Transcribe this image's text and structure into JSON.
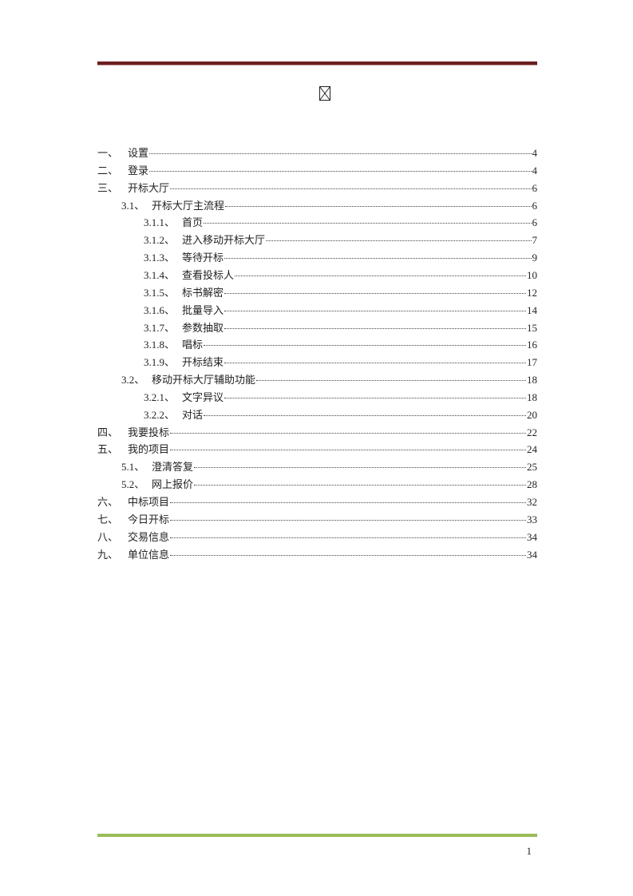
{
  "header": {
    "rule_color": "#6b1f20",
    "logo_icon": "broken-image-icon"
  },
  "toc": [
    {
      "level": 1,
      "num": "一、",
      "title": "设置",
      "page": "4"
    },
    {
      "level": 1,
      "num": "二、",
      "title": "登录",
      "page": "4"
    },
    {
      "level": 1,
      "num": "三、",
      "title": "开标大厅",
      "page": "6"
    },
    {
      "level": 2,
      "num": "3.1、",
      "title": "开标大厅主流程",
      "page": "6"
    },
    {
      "level": 3,
      "num": "3.1.1、",
      "title": "首页",
      "page": "6"
    },
    {
      "level": 3,
      "num": "3.1.2、",
      "title": "进入移动开标大厅",
      "page": "7"
    },
    {
      "level": 3,
      "num": "3.1.3、",
      "title": "等待开标",
      "page": "9"
    },
    {
      "level": 3,
      "num": "3.1.4、",
      "title": "查看投标人",
      "page": "10"
    },
    {
      "level": 3,
      "num": "3.1.5、",
      "title": "标书解密",
      "page": "12"
    },
    {
      "level": 3,
      "num": "3.1.6、",
      "title": "批量导入",
      "page": "14"
    },
    {
      "level": 3,
      "num": "3.1.7、",
      "title": "参数抽取",
      "page": "15"
    },
    {
      "level": 3,
      "num": "3.1.8、",
      "title": "唱标",
      "page": "16"
    },
    {
      "level": 3,
      "num": "3.1.9、",
      "title": "开标结束",
      "page": "17"
    },
    {
      "level": 2,
      "num": "3.2、",
      "title": "移动开标大厅辅助功能",
      "page": "18"
    },
    {
      "level": 3,
      "num": "3.2.1、",
      "title": "文字异议",
      "page": "18"
    },
    {
      "level": 3,
      "num": "3.2.2、",
      "title": "对话",
      "page": "20"
    },
    {
      "level": 1,
      "num": "四、",
      "title": "我要投标",
      "page": "22"
    },
    {
      "level": 1,
      "num": "五、",
      "title": "我的项目",
      "page": "24"
    },
    {
      "level": 2,
      "num": "5.1、",
      "title": "澄清答复",
      "page": "25"
    },
    {
      "level": 2,
      "num": "5.2、",
      "title": "网上报价",
      "page": "28"
    },
    {
      "level": 1,
      "num": "六、",
      "title": "中标项目",
      "page": "32"
    },
    {
      "level": 1,
      "num": "七、",
      "title": "今日开标",
      "page": "33"
    },
    {
      "level": 1,
      "num": "八、",
      "title": "交易信息",
      "page": "34"
    },
    {
      "level": 1,
      "num": "九、",
      "title": "单位信息",
      "page": "34"
    }
  ],
  "footer": {
    "rule_color": "#9bbb59",
    "page_number": "1"
  }
}
